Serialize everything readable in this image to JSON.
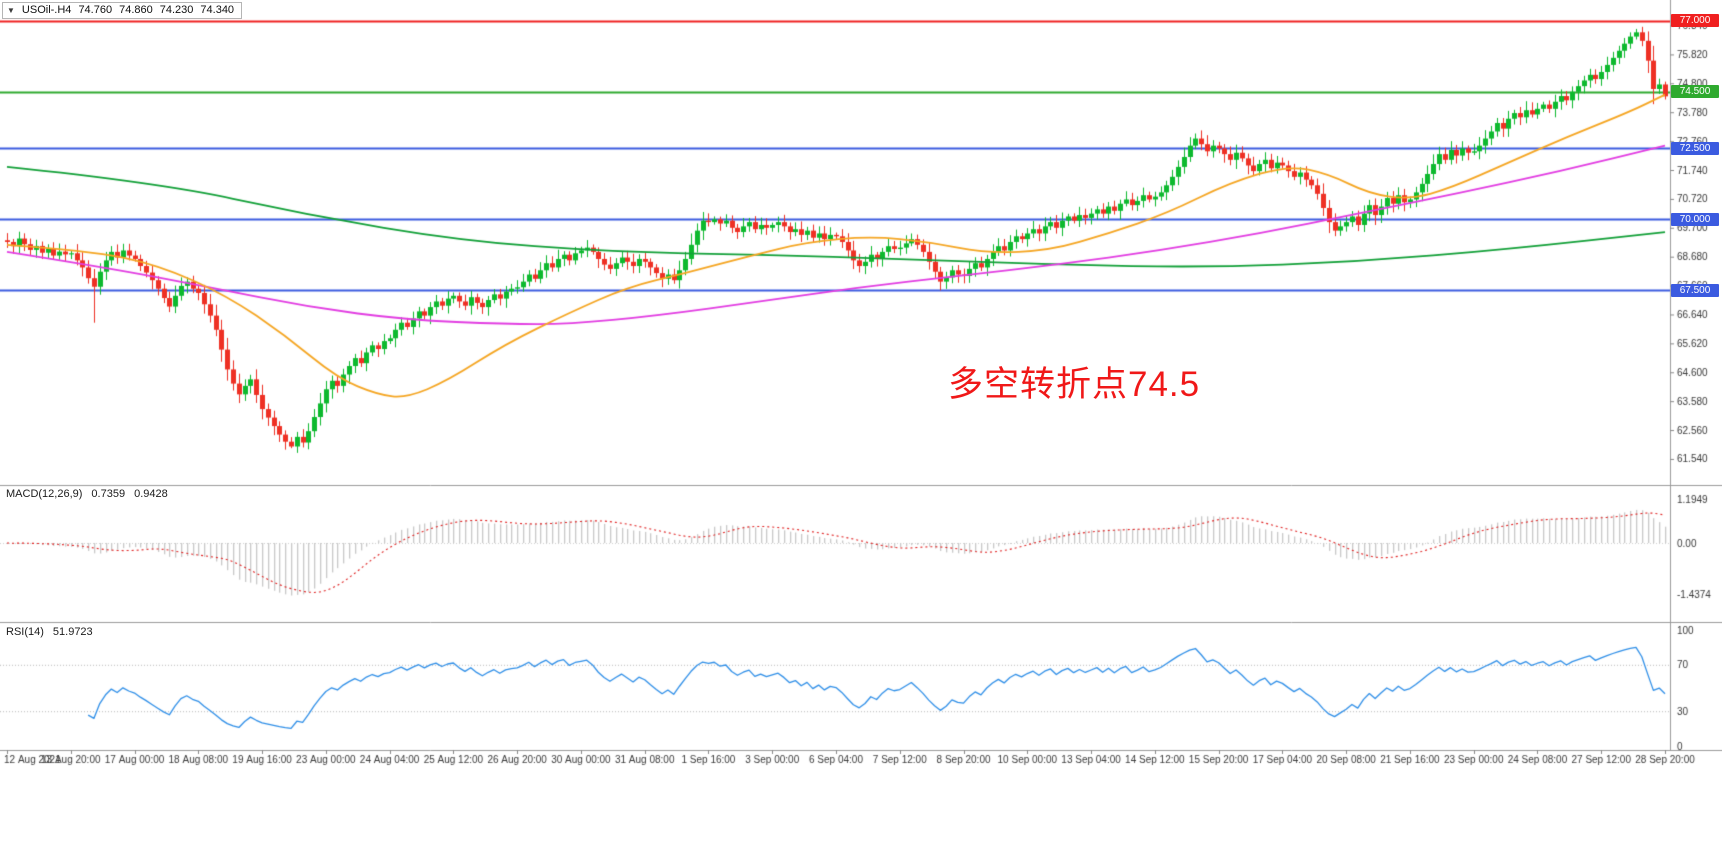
{
  "title_bar": {
    "dropdown_icon": "▼",
    "symbol": "USOil-.H4",
    "open": "74.760",
    "high": "74.860",
    "low": "74.230",
    "close": "74.340"
  },
  "annotation": {
    "text": "多空转折点74.5",
    "color": "#f01818"
  },
  "colors": {
    "candle_up": "#0db92e",
    "candle_down": "#ee3024",
    "hline_red": "#f02020",
    "hline_green": "#2faa2f",
    "hline_blue": "#3b5be0",
    "macd_histogram": "#c9c9c9",
    "macd_signal": "#e02020",
    "rsi_line": "#2f8fe8",
    "axis_text": "#3a3a3a"
  },
  "chart_data": [
    {
      "type": "candlestick",
      "title": "USOil-.H4",
      "timeframe": "H4",
      "ohlc_current": {
        "open": 74.76,
        "high": 74.86,
        "low": 74.23,
        "close": 74.34
      },
      "ylim": [
        61.15,
        77.6
      ],
      "y_ticks": [
        "76.840",
        "75.820",
        "74.800",
        "73.780",
        "72.760",
        "71.740",
        "70.720",
        "69.700",
        "68.680",
        "67.660",
        "66.640",
        "65.620",
        "64.600",
        "63.580",
        "62.560",
        "61.540"
      ],
      "x_labels": [
        "12 Aug 2021",
        "13 Aug 20:00",
        "17 Aug 00:00",
        "18 Aug 08:00",
        "19 Aug 16:00",
        "23 Aug 00:00",
        "24 Aug 04:00",
        "25 Aug 12:00",
        "26 Aug 20:00",
        "30 Aug 00:00",
        "31 Aug 08:00",
        "1 Sep 16:00",
        "3 Sep 00:00",
        "6 Sep 04:00",
        "7 Sep 12:00",
        "8 Sep 20:00",
        "10 Sep 00:00",
        "13 Sep 04:00",
        "14 Sep 12:00",
        "15 Sep 20:00",
        "17 Sep 04:00",
        "20 Sep 08:00",
        "21 Sep 16:00",
        "23 Sep 00:00",
        "24 Sep 08:00",
        "27 Sep 12:00",
        "28 Sep 20:00"
      ],
      "label_every_n_candles": 11,
      "closes": [
        69.2,
        69.05,
        69.32,
        69.12,
        68.92,
        69.06,
        68.82,
        68.96,
        68.72,
        68.86,
        68.76,
        68.8,
        68.55,
        68.3,
        67.92,
        67.62,
        68.15,
        68.55,
        68.85,
        68.65,
        68.9,
        68.72,
        68.6,
        68.35,
        68.12,
        67.85,
        67.55,
        67.22,
        66.92,
        67.3,
        67.65,
        67.8,
        67.55,
        67.4,
        67.0,
        66.6,
        66.1,
        65.4,
        64.7,
        64.2,
        63.82,
        64.12,
        64.35,
        63.8,
        63.3,
        63.0,
        62.7,
        62.4,
        62.15,
        61.98,
        62.32,
        62.12,
        62.52,
        63.02,
        63.5,
        64.0,
        64.3,
        64.12,
        64.52,
        64.82,
        65.1,
        64.92,
        65.3,
        65.55,
        65.42,
        65.7,
        65.8,
        66.1,
        66.35,
        66.2,
        66.5,
        66.75,
        66.6,
        66.9,
        67.1,
        66.95,
        67.2,
        67.3,
        67.1,
        66.95,
        67.25,
        67.05,
        66.9,
        67.15,
        67.35,
        67.2,
        67.45,
        67.55,
        67.6,
        67.8,
        68.05,
        67.9,
        68.2,
        68.45,
        68.3,
        68.6,
        68.75,
        68.55,
        68.8,
        68.9,
        69.0,
        68.85,
        68.6,
        68.4,
        68.25,
        68.45,
        68.65,
        68.5,
        68.35,
        68.6,
        68.5,
        68.3,
        68.1,
        67.9,
        68.05,
        67.85,
        68.2,
        68.6,
        69.1,
        69.6,
        69.95,
        69.9,
        70.0,
        69.85,
        69.95,
        69.7,
        69.55,
        69.75,
        69.9,
        69.65,
        69.8,
        69.7,
        69.8,
        69.9,
        69.75,
        69.55,
        69.65,
        69.45,
        69.6,
        69.35,
        69.5,
        69.3,
        69.45,
        69.4,
        69.2,
        68.9,
        68.55,
        68.35,
        68.5,
        68.75,
        68.6,
        68.85,
        69.05,
        68.95,
        69.0,
        69.15,
        69.3,
        69.1,
        68.85,
        68.5,
        68.15,
        67.8,
        67.95,
        68.2,
        68.05,
        68.0,
        68.25,
        68.45,
        68.3,
        68.6,
        68.85,
        69.05,
        68.9,
        69.2,
        69.4,
        69.3,
        69.5,
        69.65,
        69.5,
        69.75,
        69.9,
        69.7,
        69.95,
        70.1,
        69.95,
        70.15,
        70.05,
        70.2,
        70.35,
        70.2,
        70.45,
        70.3,
        70.55,
        70.7,
        70.5,
        70.65,
        70.85,
        70.7,
        70.8,
        70.95,
        71.2,
        71.5,
        71.85,
        72.2,
        72.6,
        72.85,
        72.65,
        72.4,
        72.6,
        72.5,
        72.3,
        72.1,
        72.35,
        72.15,
        71.9,
        71.7,
        71.95,
        72.1,
        71.8,
        72.0,
        71.9,
        71.7,
        71.5,
        71.65,
        71.4,
        71.2,
        70.9,
        70.4,
        69.9,
        69.6,
        69.75,
        69.9,
        70.1,
        69.8,
        70.2,
        70.5,
        70.15,
        70.45,
        70.75,
        70.55,
        70.85,
        70.6,
        70.7,
        70.95,
        71.25,
        71.6,
        71.95,
        72.3,
        72.1,
        72.45,
        72.25,
        72.5,
        72.35,
        72.4,
        72.6,
        72.85,
        73.1,
        73.4,
        73.2,
        73.55,
        73.75,
        73.6,
        73.85,
        73.7,
        73.9,
        74.05,
        73.9,
        74.15,
        74.35,
        74.2,
        74.5,
        74.7,
        74.9,
        75.1,
        74.95,
        75.2,
        75.45,
        75.7,
        75.95,
        76.2,
        76.45,
        76.6,
        76.3,
        75.6,
        74.6,
        74.76,
        74.34
      ],
      "wick_overrides": [
        {
          "i": 15,
          "low": 66.35
        },
        {
          "i": 49,
          "low": 61.92
        },
        {
          "i": 281,
          "high": 76.72
        },
        {
          "i": 286,
          "high": 74.86,
          "low": 74.23
        }
      ],
      "hlines": [
        {
          "price": 77.0,
          "label": "77.000",
          "color": "#f02020"
        },
        {
          "price": 74.5,
          "label": "74.500",
          "color": "#2faa2f"
        },
        {
          "price": 72.5,
          "label": "72.500",
          "color": "#3b5be0"
        },
        {
          "price": 70.0,
          "label": "70.000",
          "color": "#3b5be0"
        },
        {
          "price": 67.5,
          "label": "67.500",
          "color": "#3b5be0"
        }
      ],
      "ma_lines": [
        {
          "name": "ma-slow-green",
          "color": "#12a038",
          "points": [
            [
              0,
              71.85
            ],
            [
              26,
              71.3
            ],
            [
              52,
              70.15
            ],
            [
              78,
              69.25
            ],
            [
              104,
              68.85
            ],
            [
              130,
              68.75
            ],
            [
              155,
              68.6
            ],
            [
              181,
              68.4
            ],
            [
              207,
              68.3
            ],
            [
              233,
              68.5
            ],
            [
              259,
              68.95
            ],
            [
              286,
              69.55
            ]
          ]
        },
        {
          "name": "ma-mid-magenta",
          "color": "#e23de2",
          "points": [
            [
              0,
              68.85
            ],
            [
              17,
              68.3
            ],
            [
              35,
              67.6
            ],
            [
              52,
              66.9
            ],
            [
              69,
              66.45
            ],
            [
              86,
              66.3
            ],
            [
              97,
              66.3
            ],
            [
              112,
              66.6
            ],
            [
              130,
              67.1
            ],
            [
              147,
              67.6
            ],
            [
              164,
              68.0
            ],
            [
              181,
              68.4
            ],
            [
              199,
              68.9
            ],
            [
              216,
              69.5
            ],
            [
              233,
              70.2
            ],
            [
              250,
              70.9
            ],
            [
              268,
              71.7
            ],
            [
              286,
              72.6
            ]
          ]
        },
        {
          "name": "ma-fast-orange",
          "color": "#f5a623",
          "points": [
            [
              0,
              69.1
            ],
            [
              14,
              68.9
            ],
            [
              26,
              68.4
            ],
            [
              38,
              67.3
            ],
            [
              48,
              65.9
            ],
            [
              57,
              64.4
            ],
            [
              64,
              63.8
            ],
            [
              69,
              63.7
            ],
            [
              76,
              64.3
            ],
            [
              86,
              65.6
            ],
            [
              97,
              66.7
            ],
            [
              107,
              67.6
            ],
            [
              117,
              68.1
            ],
            [
              128,
              68.7
            ],
            [
              138,
              69.2
            ],
            [
              149,
              69.4
            ],
            [
              159,
              69.2
            ],
            [
              169,
              68.8
            ],
            [
              180,
              68.9
            ],
            [
              190,
              69.5
            ],
            [
              200,
              70.2
            ],
            [
              211,
              71.3
            ],
            [
              221,
              71.9
            ],
            [
              228,
              71.6
            ],
            [
              235,
              70.9
            ],
            [
              242,
              70.7
            ],
            [
              249,
              71.1
            ],
            [
              259,
              72.0
            ],
            [
              269,
              72.9
            ],
            [
              280,
              73.8
            ],
            [
              286,
              74.4
            ]
          ]
        }
      ]
    },
    {
      "type": "macd",
      "label": "MACD(12,26,9)",
      "value_main": "0.7359",
      "value_signal": "0.9428",
      "fast": 12,
      "slow": 26,
      "signal": 9,
      "y_ticks": [
        "1.1949",
        "0.00",
        "-1.4374"
      ],
      "y_tick_values": [
        1.1949,
        0,
        -1.4374
      ]
    },
    {
      "type": "rsi",
      "label": "RSI(14)",
      "value": "51.9723",
      "period": 14,
      "y_ticks": [
        "100",
        "70",
        "30",
        "0"
      ],
      "y_tick_values": [
        100,
        70,
        30,
        0
      ],
      "levels": [
        70,
        30
      ]
    }
  ]
}
